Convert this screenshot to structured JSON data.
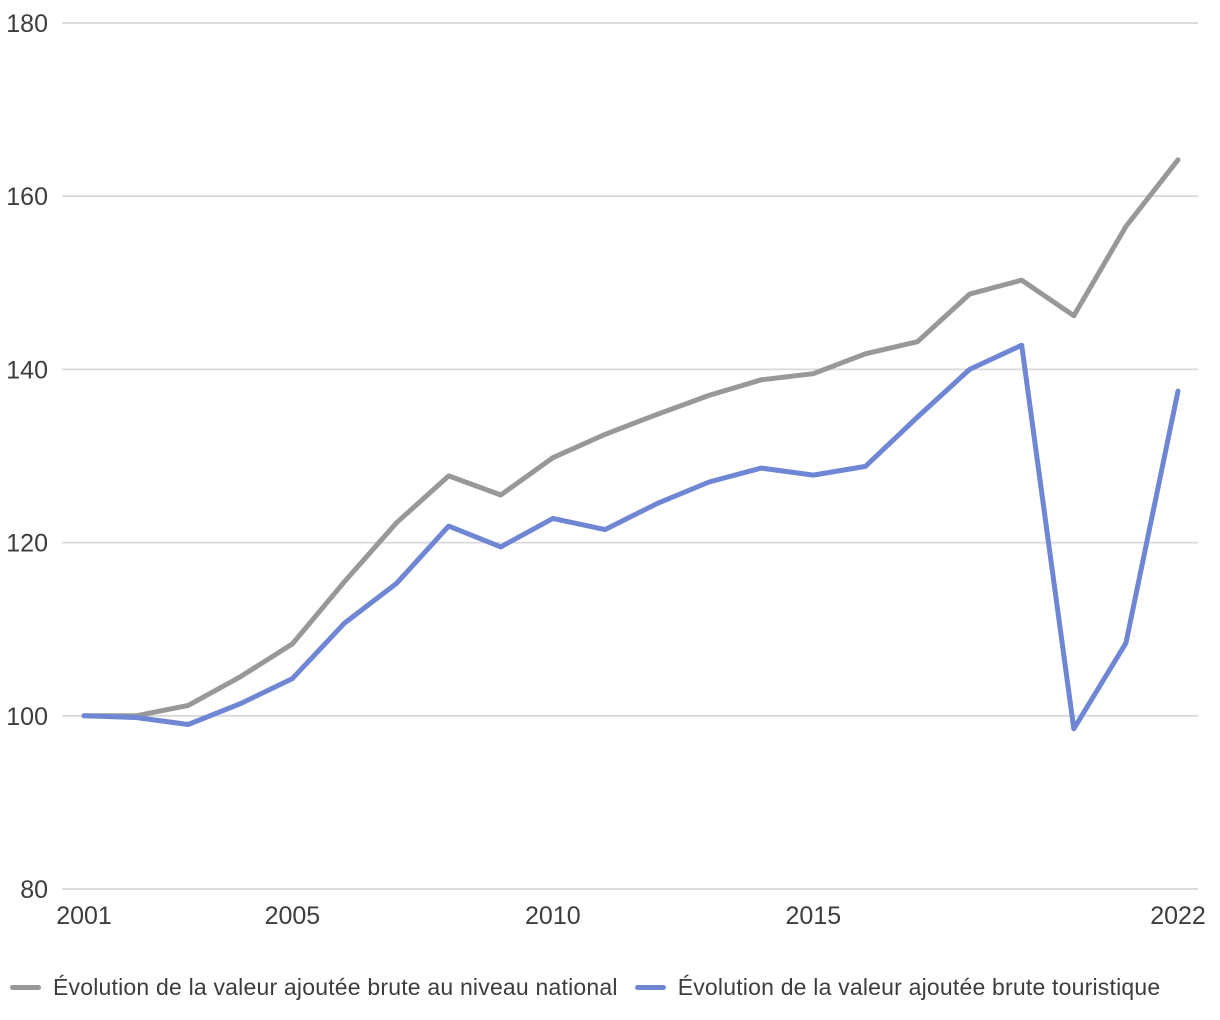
{
  "chart_data": {
    "type": "line",
    "title": "",
    "xlabel": "",
    "ylabel": "",
    "x": [
      2001,
      2002,
      2003,
      2004,
      2005,
      2006,
      2007,
      2008,
      2009,
      2010,
      2011,
      2012,
      2013,
      2014,
      2015,
      2016,
      2017,
      2018,
      2019,
      2020,
      2021,
      2022
    ],
    "series": [
      {
        "name": "Évolution de la valeur ajoutée brute au niveau national",
        "color": "#989898",
        "values": [
          100,
          100,
          101.2,
          104.5,
          108.3,
          115.5,
          122.3,
          127.7,
          125.5,
          129.8,
          132.5,
          134.8,
          137,
          138.8,
          139.5,
          141.8,
          143.2,
          148.7,
          150.3,
          146.2,
          156.5,
          164.2
        ]
      },
      {
        "name": "Évolution de la valeur ajoutée brute touristique",
        "color": "#6e86d4",
        "values": [
          100,
          99.8,
          99,
          101.4,
          104.3,
          110.7,
          115.3,
          121.9,
          119.5,
          122.8,
          121.5,
          124.5,
          127,
          128.6,
          127.8,
          128.8,
          134.5,
          140,
          142.8,
          98.5,
          108.4,
          137.5
        ]
      }
    ],
    "ylim": [
      80,
      180
    ],
    "yticks": [
      "80",
      "100",
      "120",
      "140",
      "160",
      "180"
    ],
    "xticks": [
      "2001",
      "2005",
      "2010",
      "2015",
      "2022"
    ],
    "grid": "horizontal",
    "grid_color": "#d9d9d9",
    "tick_label_color": "#3d3d3d",
    "legend_position": "bottom"
  }
}
